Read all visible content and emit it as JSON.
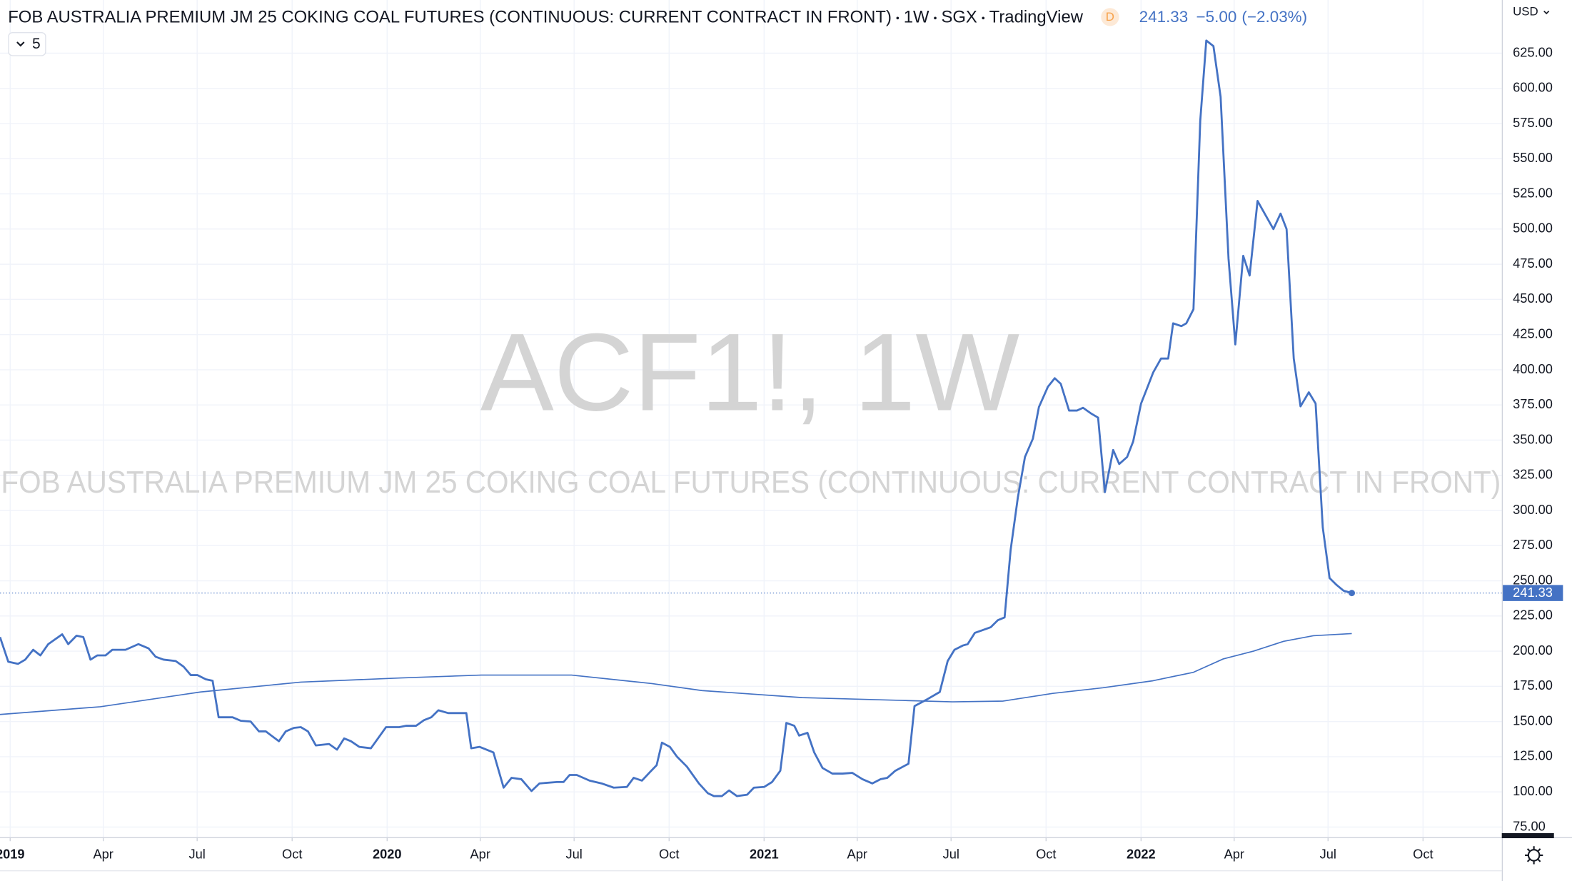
{
  "chart_data": {
    "type": "line",
    "header": {
      "title": "FOB AUSTRALIA PREMIUM JM 25 COKING COAL FUTURES (CONTINUOUS: CURRENT CONTRACT IN FRONT)",
      "interval": "1W",
      "exchange": "SGX",
      "source": "TradingView",
      "badge": "D",
      "change": "−5.00",
      "change_pct": "(−2.03%)",
      "collapse": "5",
      "currency": "USD"
    },
    "watermark": {
      "symbol": "ACF1!, 1W",
      "description": "FOB AUSTRALIA PREMIUM JM 25 COKING COAL FUTURES (CONTINUOUS: CURRENT CONTRACT IN FRONT)"
    },
    "xlim": [
      2018.973,
      2022.957
    ],
    "ylim": [
      67.8,
      662.8
    ],
    "xticks": [
      2019,
      {
        "value": 2019.247,
        "label": "Apr"
      },
      {
        "value": 2019.496,
        "label": "Jul"
      },
      {
        "value": 2019.748,
        "label": "Oct"
      },
      2020,
      {
        "value": 2020.247,
        "label": "Apr"
      },
      {
        "value": 2020.496,
        "label": "Jul"
      },
      {
        "value": 2020.748,
        "label": "Oct"
      },
      2021,
      {
        "value": 2021.247,
        "label": "Apr"
      },
      {
        "value": 2021.496,
        "label": "Jul"
      },
      {
        "value": 2021.748,
        "label": "Oct"
      },
      2022,
      {
        "value": 2022.247,
        "label": "Apr"
      },
      {
        "value": 2022.496,
        "label": "Jul"
      },
      {
        "value": 2022.748,
        "label": "Oct"
      }
    ],
    "yticks": [
      {
        "value": 75,
        "label": "75.00"
      },
      {
        "value": 100,
        "label": "100.00"
      },
      {
        "value": 125,
        "label": "125.00"
      },
      {
        "value": 150,
        "label": "150.00"
      },
      {
        "value": 175,
        "label": "175.00"
      },
      {
        "value": 200,
        "label": "200.00"
      },
      {
        "value": 225,
        "label": "225.00"
      },
      {
        "value": 250,
        "label": "250.00"
      },
      {
        "value": 275,
        "label": "275.00"
      },
      {
        "value": 300,
        "label": "300.00"
      },
      {
        "value": 325,
        "label": "325.00"
      },
      {
        "value": 350,
        "label": "350.00"
      },
      {
        "value": 375,
        "label": "375.00"
      },
      {
        "value": 400,
        "label": "400.00"
      },
      {
        "value": 425,
        "label": "425.00"
      },
      {
        "value": 450,
        "label": "450.00"
      },
      {
        "value": 475,
        "label": "475.00"
      },
      {
        "value": 500,
        "label": "500.00"
      },
      {
        "value": 525,
        "label": "525.00"
      },
      {
        "value": 550,
        "label": "550.00"
      },
      {
        "value": 575,
        "label": "575.00"
      },
      {
        "value": 600,
        "label": "600.00"
      },
      {
        "value": 625,
        "label": "625.00"
      }
    ],
    "grid": true,
    "series": [
      {
        "color": "#4472c4",
        "x": [
          2018.973,
          2018.995,
          2019.021,
          2019.04,
          2019.061,
          2019.08,
          2019.101,
          2019.138,
          2019.154,
          2019.176,
          2019.194,
          2019.213,
          2019.231,
          2019.253,
          2019.271,
          2019.306,
          2019.34,
          2019.367,
          2019.386,
          2019.407,
          2019.439,
          2019.46,
          2019.479,
          2019.497,
          2019.519,
          2019.537,
          2019.553,
          2019.59,
          2019.612,
          2019.638,
          2019.66,
          2019.678,
          2019.713,
          2019.731,
          2019.753,
          2019.771,
          2019.79,
          2019.811,
          2019.846,
          2019.867,
          2019.886,
          2019.904,
          2019.926,
          2019.957,
          2019.997,
          2020.032,
          2020.051,
          2020.077,
          2020.098,
          2020.117,
          2020.136,
          2020.162,
          2020.21,
          2020.223,
          2020.245,
          2020.282,
          2020.309,
          2020.33,
          2020.356,
          2020.383,
          2020.404,
          2020.45,
          2020.468,
          2020.484,
          2020.503,
          2020.537,
          2020.569,
          2020.601,
          2020.636,
          2020.654,
          2020.676,
          2020.697,
          2020.715,
          2020.729,
          2020.75,
          2020.769,
          2020.795,
          2020.827,
          2020.851,
          2020.867,
          2020.888,
          2020.907,
          2020.928,
          2020.955,
          2020.973,
          2021.0,
          2021.021,
          2021.043,
          2021.059,
          2021.08,
          2021.093,
          2021.115,
          2021.133,
          2021.155,
          2021.181,
          2021.208,
          2021.234,
          2021.261,
          2021.287,
          2021.309,
          2021.327,
          2021.348,
          2021.383,
          2021.399,
          2021.434,
          2021.466,
          2021.487,
          2021.505,
          2021.527,
          2021.54,
          2021.559,
          2021.58,
          2021.601,
          2021.62,
          2021.638,
          2021.654,
          2021.673,
          2021.692,
          2021.713,
          2021.729,
          2021.753,
          2021.771,
          2021.787,
          2021.809,
          2021.83,
          2021.846,
          2021.867,
          2021.886,
          2021.904,
          2021.926,
          2021.942,
          2021.963,
          2021.979,
          2022.0,
          2022.019,
          2022.032,
          2022.053,
          2022.072,
          2022.085,
          2022.107,
          2022.12,
          2022.139,
          2022.157,
          2022.173,
          2022.192,
          2022.211,
          2022.232,
          2022.25,
          2022.271,
          2022.288,
          2022.309,
          2022.33,
          2022.351,
          2022.37,
          2022.386,
          2022.405,
          2022.423,
          2022.445,
          2022.463,
          2022.482,
          2022.5,
          2022.519,
          2022.537,
          2022.559
        ],
        "values": [
          210,
          192.5,
          191,
          194,
          201,
          197,
          205,
          212,
          205,
          211,
          210,
          194,
          197,
          197,
          201,
          201,
          205,
          202,
          196,
          194,
          193,
          189,
          183,
          183,
          180,
          179,
          153,
          153,
          150.5,
          150,
          143,
          143,
          136,
          143,
          145.5,
          146,
          143,
          133,
          134,
          130,
          138,
          136,
          132,
          131,
          146,
          146,
          147,
          147,
          151,
          153,
          158,
          156,
          156,
          131,
          132,
          128,
          103,
          110,
          109,
          100.6,
          106,
          107,
          107,
          112,
          112,
          108,
          106,
          103,
          103.5,
          110,
          108,
          114,
          119,
          135,
          132,
          125,
          118,
          106,
          99,
          97,
          97,
          101,
          97,
          98,
          103,
          103.5,
          107,
          115,
          149,
          147,
          140,
          142,
          128,
          117,
          113,
          113,
          113.5,
          109,
          106,
          109,
          110,
          115,
          120,
          161,
          166,
          171,
          193,
          201,
          204,
          205,
          213,
          215,
          217,
          222,
          224,
          272,
          309,
          338,
          351,
          373.5,
          388,
          394,
          390,
          371,
          371,
          373,
          369,
          366,
          313,
          343,
          333,
          338,
          349,
          376,
          389,
          398,
          408,
          408,
          433,
          431,
          433,
          443,
          577,
          634,
          630,
          594,
          479,
          418,
          481,
          467,
          520,
          510,
          500,
          511,
          500,
          408,
          374,
          384,
          376,
          288,
          252,
          247,
          243,
          241.33
        ]
      },
      {
        "color": "#4472c4",
        "x": [
          2018.973,
          2019.239,
          2019.505,
          2019.771,
          2020.037,
          2020.25,
          2020.489,
          2020.702,
          2020.835,
          2021.101,
          2021.367,
          2021.5,
          2021.633,
          2021.766,
          2021.899,
          2022.032,
          2022.139,
          2022.218,
          2022.298,
          2022.378,
          2022.457,
          2022.559
        ],
        "values": [
          155,
          160.5,
          171,
          178,
          181,
          183,
          183,
          177,
          172,
          167,
          165,
          164,
          164.5,
          170,
          174,
          179,
          185,
          194.5,
          200,
          207,
          211,
          212.5
        ]
      }
    ]
  }
}
